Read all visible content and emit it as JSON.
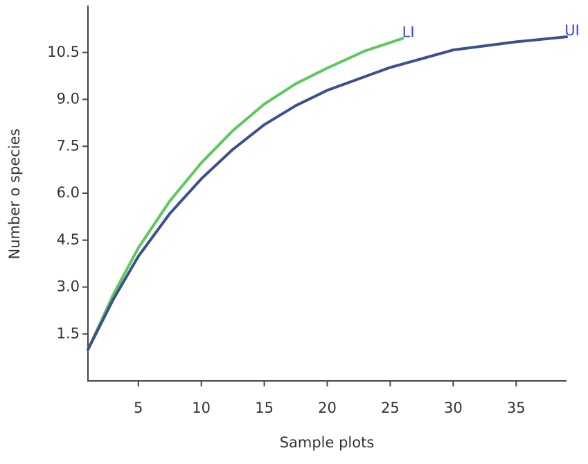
{
  "chart_data": {
    "type": "line",
    "x_label": "Sample plots",
    "y_label": "Number o species",
    "series": [
      {
        "name": "LI",
        "color": "#5cc95c",
        "x": [
          1,
          3,
          5,
          7.5,
          10,
          12.5,
          15,
          17.5,
          20,
          23,
          26
        ],
        "values": [
          1,
          2.75,
          4.25,
          5.75,
          6.97,
          8.0,
          8.85,
          9.5,
          10.0,
          10.55,
          10.95
        ]
      },
      {
        "name": "UI",
        "color": "#3c4f8f",
        "x": [
          1,
          3,
          5,
          7.5,
          10,
          12.5,
          15,
          17.5,
          20,
          25,
          30,
          35,
          39
        ],
        "values": [
          1,
          2.6,
          3.98,
          5.35,
          6.46,
          7.4,
          8.19,
          8.8,
          9.29,
          10.02,
          10.58,
          10.84,
          11.0
        ]
      }
    ],
    "label_color": "#3a3aff",
    "xlim": [
      1,
      39
    ],
    "xticks": [
      5,
      10,
      15,
      20,
      25,
      30,
      35
    ],
    "ylim": [
      0,
      12
    ],
    "yticks": [
      1.5,
      {
        "value": 3,
        "label": "3.0"
      },
      4.5,
      {
        "value": 6,
        "label": "6.0"
      },
      7.5,
      {
        "value": 9,
        "label": "9.0"
      },
      10.5
    ],
    "grid": false
  }
}
